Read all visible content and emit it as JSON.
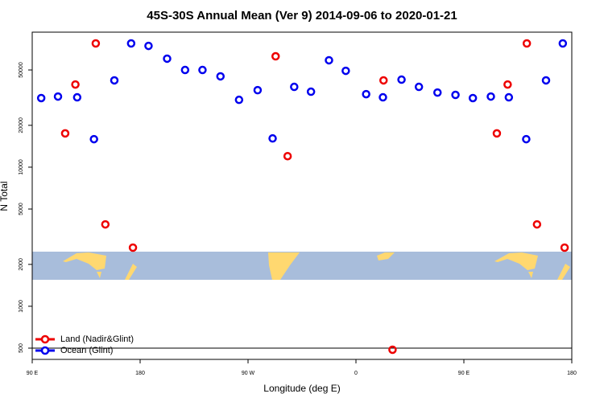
{
  "chart_data": {
    "type": "scatter",
    "title": "45S-30S Annual Mean (Ver 9)   2014-09-06 to 2020-01-21",
    "xlabel": "Longitude (deg E)",
    "ylabel": "N Total",
    "xlim": [
      90,
      540
    ],
    "xticks": [
      {
        "value": 90,
        "label": "90 E"
      },
      180,
      {
        "value": 270,
        "label": "90 W"
      },
      {
        "value": 360,
        "label": "0"
      },
      {
        "value": 450,
        "label": "90 E"
      },
      {
        "value": 540,
        "label": "180"
      }
    ],
    "ylim": [
      415,
      93500
    ],
    "log_y": true,
    "yticks": [
      500,
      1000,
      2000,
      5000,
      10000,
      20000,
      50000
    ],
    "legend": "lower left",
    "series": [
      {
        "name": "Land (Nadir&Glint)",
        "color": "#ee0000",
        "x": [
          117.5,
          126,
          143,
          151,
          174,
          293,
          303,
          383,
          390.5,
          477.5,
          486.5,
          502.5,
          511,
          534
        ],
        "values": [
          17500,
          39300,
          77600,
          3880,
          2640,
          62700,
          12000,
          42100,
          487,
          17500,
          39300,
          77600,
          3880,
          2640
        ]
      },
      {
        "name": "Ocean (Glint)",
        "color": "#0000ee",
        "x": [
          97.5,
          111.5,
          127.5,
          141.5,
          158.5,
          172.5,
          187,
          202.5,
          217.5,
          232,
          247,
          262.5,
          278,
          290.5,
          308.5,
          322.5,
          337.5,
          351.5,
          368.5,
          382.5,
          398,
          412.5,
          428,
          443,
          457.5,
          472.5,
          487.5,
          502,
          518.5,
          532.5
        ],
        "values": [
          31400,
          32200,
          31800,
          15900,
          42100,
          77600,
          74500,
          60300,
          50000,
          50000,
          45000,
          30500,
          35800,
          16100,
          37800,
          34900,
          58700,
          49300,
          33500,
          31800,
          42600,
          37800,
          34400,
          33100,
          31400,
          32200,
          31800,
          15900,
          42100,
          77600
        ]
      }
    ]
  }
}
